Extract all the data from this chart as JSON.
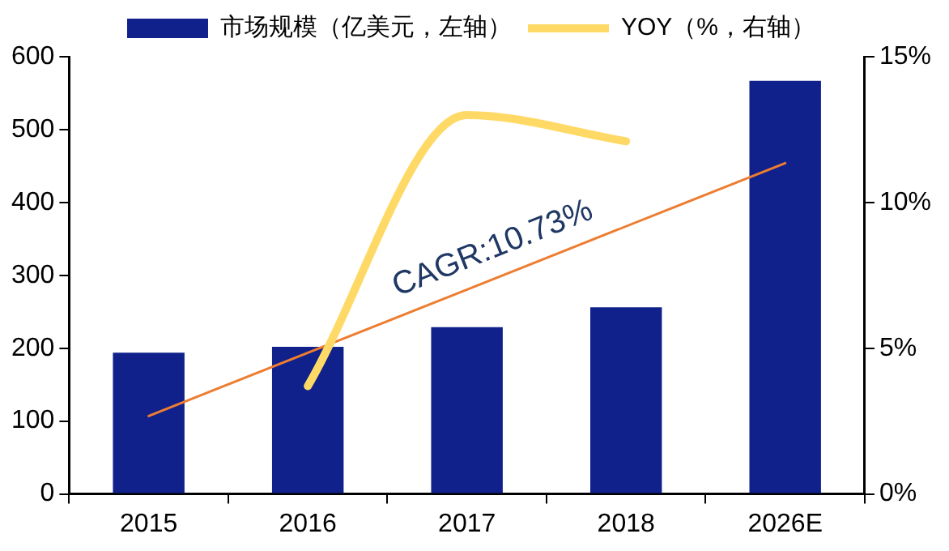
{
  "chart_data": {
    "type": "bar",
    "categories": [
      "2015",
      "2016",
      "2017",
      "2018",
      "2026E"
    ],
    "series": [
      {
        "name": "市场规模（亿美元，左轴）",
        "color": "#10218b",
        "values": [
          194,
          202,
          229,
          256,
          567
        ]
      },
      {
        "name": "YOY（%，右轴）",
        "type": "line",
        "axis": "y2",
        "color": "#ffd966",
        "values": [
          null,
          3.7,
          13.0,
          12.1,
          null
        ]
      },
      {
        "type": "line",
        "color": "#ed7d31",
        "values": [
          107,
          null,
          null,
          null,
          454
        ]
      }
    ],
    "ylim": [
      0,
      600
    ],
    "yticks": [
      0,
      100,
      200,
      300,
      400,
      500,
      600
    ],
    "y2lim": [
      0,
      15
    ],
    "y2ticks": [
      {
        "value": 0,
        "label": "0%"
      },
      {
        "value": 5,
        "label": "5%"
      },
      {
        "value": 10,
        "label": "10%"
      },
      {
        "value": 15,
        "label": "15%"
      }
    ],
    "annotations": [
      "CAGR:10.73%"
    ],
    "grid": false,
    "legend": "top"
  }
}
